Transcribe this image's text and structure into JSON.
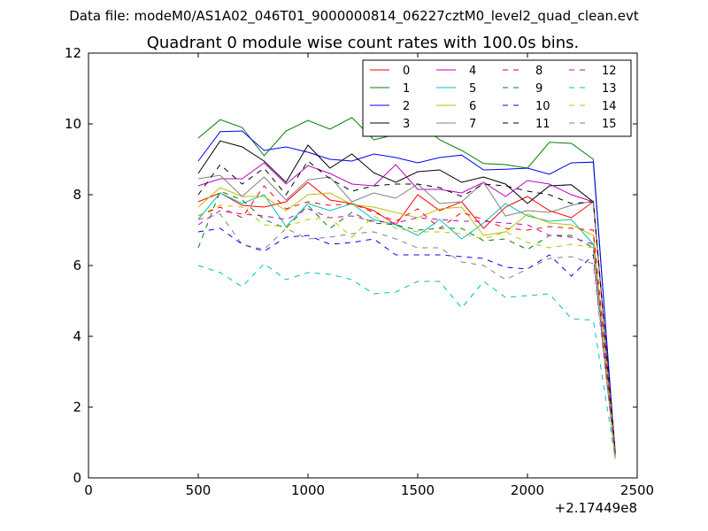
{
  "header": {
    "file_label": "Data file: modeM0/AS1A02_046T01_9000000814_06227cztM0_level2_quad_clean.evt",
    "title": "Quadrant 0 module wise count rates with 100.0s bins."
  },
  "chart_data": {
    "type": "line",
    "title": "Quadrant 0 module wise count rates with 100.0s bins.",
    "xlabel": "",
    "ylabel": "",
    "x_offset_label": "+2.17449e8",
    "xlim": [
      0,
      2500
    ],
    "ylim": [
      0,
      12
    ],
    "xticks": [
      0,
      500,
      1000,
      1500,
      2000,
      2500
    ],
    "yticks": [
      0,
      2,
      4,
      6,
      8,
      10,
      12
    ],
    "grid": false,
    "legend_position": "top-right",
    "x": [
      500,
      600,
      700,
      800,
      900,
      1000,
      1100,
      1200,
      1300,
      1400,
      1500,
      1600,
      1700,
      1800,
      1900,
      2000,
      2100,
      2200,
      2300,
      2400
    ],
    "series": [
      {
        "name": "0",
        "color": "#ff0000",
        "dash": "solid",
        "values": [
          7.8,
          8.05,
          7.7,
          7.65,
          7.8,
          8.35,
          7.85,
          7.75,
          7.55,
          7.15,
          8.0,
          7.55,
          7.8,
          7.05,
          7.65,
          7.95,
          7.55,
          7.35,
          7.8,
          0.75
        ]
      },
      {
        "name": "1",
        "color": "#008000",
        "dash": "solid",
        "values": [
          9.6,
          10.12,
          9.9,
          9.1,
          9.8,
          10.1,
          9.85,
          10.18,
          9.55,
          9.7,
          10.05,
          9.55,
          9.25,
          8.88,
          8.85,
          8.75,
          9.48,
          9.45,
          9.0,
          0.6
        ]
      },
      {
        "name": "2",
        "color": "#0000ff",
        "dash": "solid",
        "values": [
          8.95,
          9.78,
          9.8,
          9.25,
          9.35,
          9.2,
          9.0,
          8.95,
          9.15,
          9.05,
          8.9,
          9.05,
          9.12,
          8.7,
          8.72,
          8.75,
          8.58,
          8.9,
          8.92,
          0.65
        ]
      },
      {
        "name": "3",
        "color": "#000000",
        "dash": "solid",
        "values": [
          8.6,
          9.52,
          9.35,
          8.95,
          8.35,
          9.4,
          8.75,
          9.15,
          8.62,
          8.35,
          8.65,
          8.7,
          8.35,
          8.5,
          8.3,
          7.75,
          8.25,
          8.28,
          7.8,
          0.7
        ]
      },
      {
        "name": "4",
        "color": "#bf00bf",
        "dash": "solid",
        "values": [
          8.25,
          8.45,
          8.45,
          8.9,
          8.3,
          8.82,
          8.6,
          8.3,
          8.25,
          8.85,
          8.15,
          8.15,
          8.05,
          8.35,
          7.95,
          8.4,
          8.3,
          8.0,
          7.8,
          0.55
        ]
      },
      {
        "name": "5",
        "color": "#00bfbf",
        "dash": "solid",
        "values": [
          7.3,
          8.05,
          7.75,
          8.0,
          7.1,
          7.75,
          7.55,
          7.75,
          7.3,
          7.15,
          6.85,
          7.3,
          6.75,
          7.2,
          7.75,
          7.4,
          7.25,
          7.3,
          6.6,
          0.55
        ]
      },
      {
        "name": "6",
        "color": "#bfbf00",
        "dash": "solid",
        "values": [
          7.65,
          8.2,
          7.95,
          7.95,
          7.55,
          8.0,
          8.05,
          7.72,
          7.65,
          7.5,
          7.35,
          7.6,
          7.65,
          6.85,
          6.95,
          7.45,
          7.2,
          7.15,
          6.85,
          0.6
        ]
      },
      {
        "name": "7",
        "color": "#808080",
        "dash": "solid",
        "values": [
          8.45,
          8.55,
          7.95,
          8.5,
          7.85,
          8.42,
          8.5,
          7.8,
          8.05,
          7.9,
          8.3,
          7.75,
          7.8,
          8.35,
          7.4,
          7.55,
          7.5,
          7.7,
          7.82,
          0.65
        ]
      },
      {
        "name": "8",
        "color": "#ff0000",
        "dash": "dashed",
        "values": [
          7.4,
          7.65,
          7.35,
          8.25,
          7.6,
          7.8,
          7.7,
          7.75,
          7.5,
          7.25,
          7.6,
          7.05,
          7.5,
          7.3,
          7.05,
          7.0,
          7.1,
          7.05,
          7.0,
          0.65
        ]
      },
      {
        "name": "9",
        "color": "#008000",
        "dash": "dashed",
        "values": [
          6.5,
          8.1,
          7.85,
          7.3,
          7.05,
          7.7,
          7.05,
          7.5,
          7.2,
          7.15,
          7.0,
          7.05,
          7.05,
          6.7,
          6.75,
          6.45,
          6.85,
          6.85,
          6.5,
          0.55
        ]
      },
      {
        "name": "10",
        "color": "#0000ff",
        "dash": "dashed",
        "values": [
          6.95,
          7.05,
          6.6,
          6.4,
          6.8,
          6.85,
          6.6,
          6.65,
          6.75,
          6.3,
          6.3,
          6.3,
          6.25,
          6.2,
          5.95,
          5.9,
          6.3,
          5.7,
          6.3,
          0.55
        ]
      },
      {
        "name": "11",
        "color": "#000000",
        "dash": "dashed",
        "values": [
          8.0,
          8.85,
          8.3,
          8.75,
          8.0,
          8.95,
          8.45,
          8.1,
          8.25,
          8.3,
          8.3,
          8.2,
          7.95,
          8.3,
          8.25,
          8.1,
          8.0,
          7.75,
          7.8,
          0.7
        ]
      },
      {
        "name": "12",
        "color": "#bf00bf",
        "dash": "dashed",
        "values": [
          7.15,
          7.55,
          7.45,
          7.4,
          7.3,
          7.6,
          7.35,
          7.4,
          7.25,
          7.2,
          7.35,
          7.3,
          7.25,
          7.25,
          7.2,
          7.15,
          6.85,
          6.8,
          6.6,
          0.55
        ]
      },
      {
        "name": "13",
        "color": "#00bfbf",
        "dash": "dashed",
        "values": [
          6.0,
          5.8,
          5.4,
          6.05,
          5.6,
          5.8,
          5.75,
          5.6,
          5.2,
          5.25,
          5.55,
          5.55,
          4.8,
          5.55,
          5.1,
          5.15,
          5.2,
          4.5,
          4.45,
          0.55
        ]
      },
      {
        "name": "14",
        "color": "#bfbf00",
        "dash": "dashed",
        "values": [
          7.4,
          7.7,
          7.65,
          7.15,
          7.1,
          7.3,
          7.35,
          6.8,
          7.4,
          7.05,
          6.95,
          6.95,
          6.9,
          6.75,
          6.95,
          6.65,
          6.5,
          6.6,
          6.5,
          0.55
        ]
      },
      {
        "name": "15",
        "color": "#808080",
        "dash": "dashed",
        "values": [
          7.3,
          7.45,
          6.6,
          6.45,
          7.05,
          6.75,
          6.8,
          6.9,
          6.95,
          6.75,
          6.5,
          6.5,
          6.1,
          6.0,
          5.6,
          5.9,
          6.2,
          6.25,
          6.05,
          0.55
        ]
      }
    ]
  }
}
